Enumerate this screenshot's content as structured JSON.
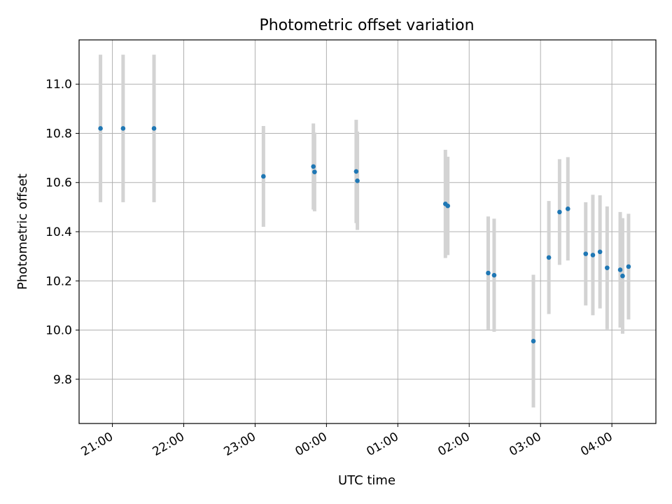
{
  "chart_data": {
    "type": "scatter",
    "title": "Photometric offset variation",
    "xlabel": "UTC time",
    "ylabel": "Photometric offset",
    "x_ticks": [
      "21:00",
      "22:00",
      "23:00",
      "00:00",
      "01:00",
      "02:00",
      "03:00",
      "04:00"
    ],
    "y_ticks": [
      "9.8",
      "10.0",
      "10.2",
      "10.4",
      "10.6",
      "10.8",
      "11.0"
    ],
    "xlim": [
      "20:32",
      "04:37"
    ],
    "ylim": [
      9.62,
      11.18
    ],
    "grid": true,
    "colors": {
      "point": "#1f77b4",
      "errorbar": "#d3d3d3",
      "grid": "#b0b0b0"
    },
    "points": [
      {
        "t": "20:50",
        "y": 10.82,
        "err": 0.3
      },
      {
        "t": "21:09",
        "y": 10.82,
        "err": 0.3
      },
      {
        "t": "21:35",
        "y": 10.82,
        "err": 0.3
      },
      {
        "t": "23:07",
        "y": 10.625,
        "err": 0.205
      },
      {
        "t": "23:49",
        "y": 10.665,
        "err": 0.175
      },
      {
        "t": "23:50",
        "y": 10.643,
        "err": 0.16
      },
      {
        "t": "00:25",
        "y": 10.645,
        "err": 0.21
      },
      {
        "t": "00:26",
        "y": 10.607,
        "err": 0.2
      },
      {
        "t": "01:40",
        "y": 10.513,
        "err": 0.22
      },
      {
        "t": "01:42",
        "y": 10.505,
        "err": 0.2
      },
      {
        "t": "02:16",
        "y": 10.232,
        "err": 0.23
      },
      {
        "t": "02:21",
        "y": 10.223,
        "err": 0.23
      },
      {
        "t": "02:54",
        "y": 9.955,
        "err": 0.27
      },
      {
        "t": "03:07",
        "y": 10.295,
        "err": 0.23
      },
      {
        "t": "03:16",
        "y": 10.48,
        "err": 0.215
      },
      {
        "t": "03:23",
        "y": 10.493,
        "err": 0.21
      },
      {
        "t": "03:38",
        "y": 10.31,
        "err": 0.21
      },
      {
        "t": "03:44",
        "y": 10.305,
        "err": 0.245
      },
      {
        "t": "03:50",
        "y": 10.318,
        "err": 0.23
      },
      {
        "t": "03:56",
        "y": 10.253,
        "err": 0.25
      },
      {
        "t": "04:07",
        "y": 10.245,
        "err": 0.235
      },
      {
        "t": "04:09",
        "y": 10.22,
        "err": 0.235
      },
      {
        "t": "04:14",
        "y": 10.258,
        "err": 0.215
      }
    ]
  }
}
